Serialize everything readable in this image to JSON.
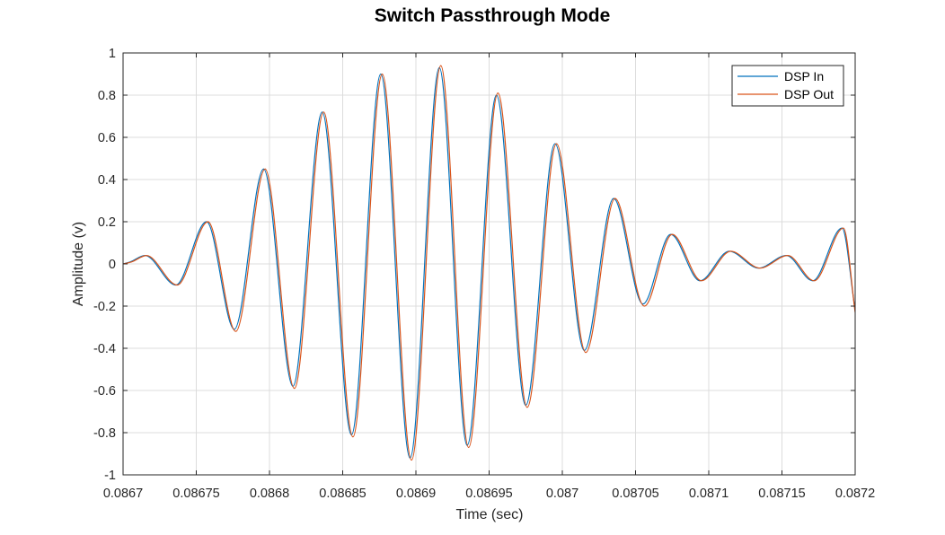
{
  "chart_data": {
    "type": "line",
    "title": "Switch Passthrough Mode",
    "xlabel": "Time (sec)",
    "ylabel": "Amplitude (v)",
    "xlim": [
      0.0867,
      0.0872
    ],
    "ylim": [
      -1,
      1
    ],
    "xticks": [
      "0.0867",
      "0.08675",
      "0.0868",
      "0.08685",
      "0.0869",
      "0.08695",
      "0.087",
      "0.08705",
      "0.0871",
      "0.08715",
      "0.0872"
    ],
    "yticks": [
      "-1",
      "-0.8",
      "-0.6",
      "-0.4",
      "-0.2",
      "0",
      "0.2",
      "0.4",
      "0.6",
      "0.8",
      "1"
    ],
    "grid": true,
    "legend_position": "top-right",
    "series": [
      {
        "name": "DSP In",
        "color": "#0072BD",
        "x": [
          0.0867,
          0.086705,
          0.086715,
          0.086736,
          0.086757,
          0.086776,
          0.086796,
          0.086816,
          0.086836,
          0.086856,
          0.086876,
          0.086896,
          0.086916,
          0.086935,
          0.086955,
          0.086975,
          0.086995,
          0.087015,
          0.087035,
          0.087055,
          0.087074,
          0.087094,
          0.087114,
          0.087134,
          0.087153,
          0.087171,
          0.087191,
          0.0872
        ],
        "y": [
          0,
          0.01,
          0.04,
          -0.1,
          0.2,
          -0.31,
          0.45,
          -0.58,
          0.72,
          -0.81,
          0.9,
          -0.92,
          0.93,
          -0.86,
          0.8,
          -0.67,
          0.57,
          -0.41,
          0.31,
          -0.19,
          0.14,
          -0.08,
          0.06,
          -0.02,
          0.04,
          -0.08,
          0.17,
          -0.22
        ]
      },
      {
        "name": "DSP Out",
        "color": "#D95319",
        "x": [
          0.0867,
          0.086706,
          0.086716,
          0.086737,
          0.086758,
          0.086777,
          0.086797,
          0.086817,
          0.086837,
          0.086857,
          0.086877,
          0.086897,
          0.086917,
          0.086936,
          0.086956,
          0.086976,
          0.086996,
          0.087016,
          0.087036,
          0.087056,
          0.087075,
          0.087095,
          0.087115,
          0.087135,
          0.087154,
          0.087172,
          0.087192,
          0.0872
        ],
        "y": [
          0,
          0.01,
          0.04,
          -0.1,
          0.2,
          -0.32,
          0.45,
          -0.59,
          0.72,
          -0.82,
          0.9,
          -0.93,
          0.94,
          -0.87,
          0.81,
          -0.68,
          0.57,
          -0.42,
          0.31,
          -0.2,
          0.14,
          -0.08,
          0.06,
          -0.02,
          0.04,
          -0.08,
          0.17,
          -0.23
        ]
      }
    ]
  }
}
